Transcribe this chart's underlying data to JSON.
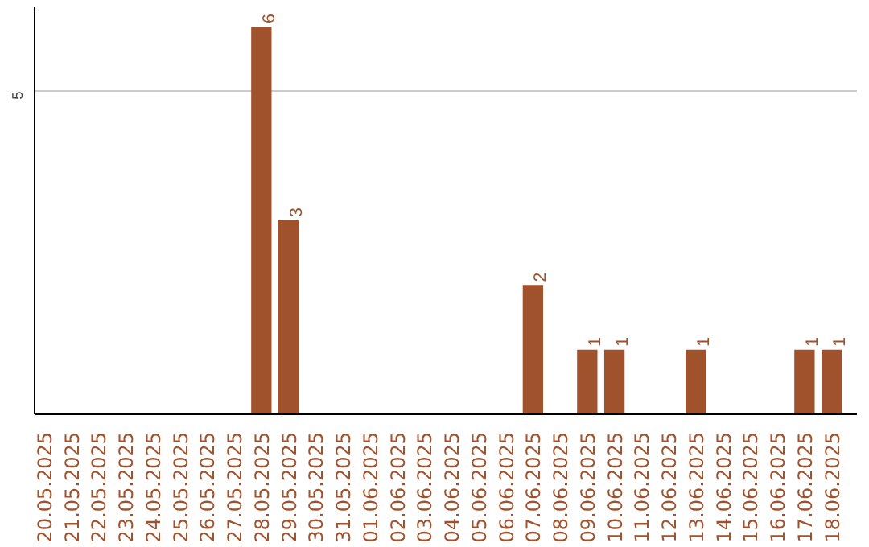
{
  "chart_data": {
    "type": "bar",
    "categories": [
      "20.05.2025",
      "21.05.2025",
      "22.05.2025",
      "23.05.2025",
      "24.05.2025",
      "25.05.2025",
      "26.05.2025",
      "27.05.2025",
      "28.05.2025",
      "29.05.2025",
      "30.05.2025",
      "31.05.2025",
      "01.06.2025",
      "02.06.2025",
      "03.06.2025",
      "04.06.2025",
      "05.06.2025",
      "06.06.2025",
      "07.06.2025",
      "08.06.2025",
      "09.06.2025",
      "10.06.2025",
      "11.06.2025",
      "12.06.2025",
      "13.06.2025",
      "14.06.2025",
      "15.06.2025",
      "16.06.2025",
      "17.06.2025",
      "18.06.2025"
    ],
    "values": [
      0,
      0,
      0,
      0,
      0,
      0,
      0,
      0,
      6,
      3,
      0,
      0,
      0,
      0,
      0,
      0,
      0,
      0,
      2,
      0,
      1,
      1,
      0,
      0,
      1,
      0,
      0,
      0,
      1,
      1
    ],
    "value_labels": [
      null,
      null,
      null,
      null,
      null,
      null,
      null,
      null,
      "6",
      "3",
      null,
      null,
      null,
      null,
      null,
      null,
      null,
      null,
      "2",
      null,
      "1",
      "1",
      null,
      null,
      "1",
      null,
      null,
      null,
      "1",
      "1"
    ],
    "color": "#a0522d",
    "ylim": [
      0,
      6.3
    ],
    "yticks": [
      5
    ],
    "grid": "y"
  }
}
